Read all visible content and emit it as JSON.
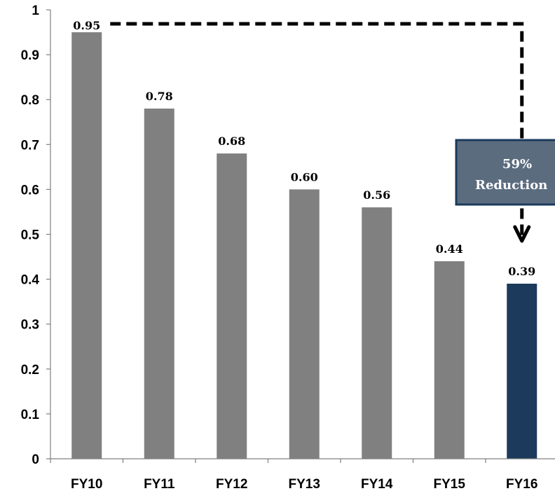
{
  "chart_data": {
    "type": "bar",
    "categories": [
      "FY10",
      "FY11",
      "FY12",
      "FY13",
      "FY14",
      "FY15",
      "FY16"
    ],
    "values": [
      0.95,
      0.78,
      0.68,
      0.6,
      0.56,
      0.44,
      0.39
    ],
    "data_labels": [
      "0.95",
      "0.78",
      "0.68",
      "0.60",
      "0.56",
      "0.44",
      "0.39"
    ],
    "ylim": [
      0,
      1
    ],
    "yticks": [
      0,
      0.1,
      0.2,
      0.3,
      0.4,
      0.5,
      0.6,
      0.7,
      0.8,
      0.9,
      1
    ],
    "ytick_labels": [
      "0",
      "0.1",
      "0.2",
      "0.3",
      "0.4",
      "0.5",
      "0.6",
      "0.7",
      "0.8",
      "0.9",
      "1"
    ],
    "title": "",
    "xlabel": "",
    "ylabel": "",
    "grid": false,
    "legend": "none",
    "bar_color": "#808080",
    "highlight_index": 6,
    "highlight_color": "#1b3a5c",
    "annotation": {
      "line1": "59%",
      "line2": "Reduction",
      "box_fill": "#5b6c7f",
      "box_border": "#1b3a5c",
      "from_category": "FY10",
      "to_category": "FY16"
    }
  }
}
